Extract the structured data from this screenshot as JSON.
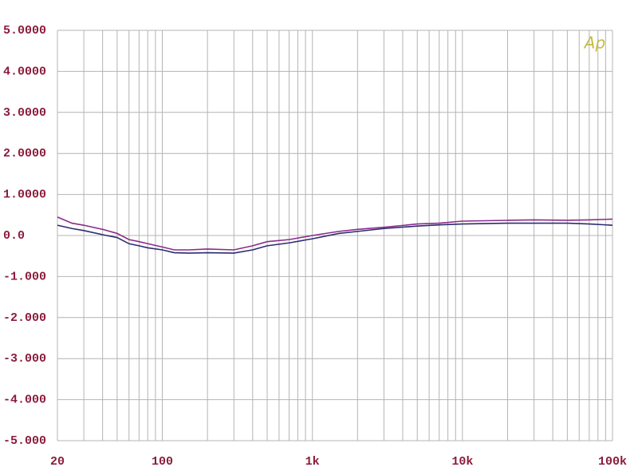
{
  "chart_data": {
    "type": "line",
    "logo": "Ap",
    "x": [
      20,
      25,
      30,
      40,
      50,
      60,
      70,
      80,
      100,
      120,
      150,
      200,
      300,
      400,
      500,
      700,
      1000,
      1500,
      2000,
      3000,
      5000,
      7000,
      10000,
      20000,
      30000,
      50000,
      70000,
      100000
    ],
    "series": [
      {
        "color": "#8a2c8c",
        "values": [
          0.45,
          0.3,
          0.25,
          0.15,
          0.05,
          -0.1,
          -0.15,
          -0.2,
          -0.28,
          -0.35,
          -0.35,
          -0.33,
          -0.35,
          -0.25,
          -0.15,
          -0.1,
          0.0,
          0.1,
          0.15,
          0.2,
          0.28,
          0.3,
          0.35,
          0.37,
          0.38,
          0.37,
          0.38,
          0.4
        ]
      },
      {
        "color": "#2c2c70",
        "values": [
          0.25,
          0.17,
          0.12,
          0.02,
          -0.05,
          -0.2,
          -0.25,
          -0.3,
          -0.35,
          -0.42,
          -0.43,
          -0.42,
          -0.43,
          -0.35,
          -0.25,
          -0.18,
          -0.08,
          0.05,
          0.1,
          0.17,
          0.23,
          0.26,
          0.28,
          0.3,
          0.3,
          0.3,
          0.28,
          0.25
        ]
      }
    ],
    "xlog": true,
    "xlim": [
      20,
      100000
    ],
    "xticks": [
      20,
      100,
      {
        "value": 1000,
        "label": "1k"
      },
      {
        "value": 10000,
        "label": "10k"
      },
      {
        "value": 100000,
        "label": "100k"
      }
    ],
    "x_minor_ticks": [
      30,
      40,
      50,
      60,
      70,
      80,
      90,
      200,
      300,
      400,
      500,
      600,
      700,
      800,
      900,
      2000,
      3000,
      4000,
      5000,
      6000,
      7000,
      8000,
      9000,
      20000,
      30000,
      40000,
      50000,
      60000,
      70000,
      80000,
      90000
    ],
    "ylim": [
      -5,
      5
    ],
    "yticks": [
      {
        "value": 5,
        "label": "5.0000"
      },
      {
        "value": 4,
        "label": "4.0000"
      },
      {
        "value": 3,
        "label": "3.0000"
      },
      {
        "value": 2,
        "label": "2.0000"
      },
      {
        "value": 1,
        "label": "1.0000"
      },
      {
        "value": 0,
        "label": "0.0"
      },
      {
        "value": -1,
        "label": "-1.000"
      },
      {
        "value": -2,
        "label": "-2.000"
      },
      {
        "value": -3,
        "label": "-3.000"
      },
      {
        "value": -4,
        "label": "-4.000"
      },
      {
        "value": -5,
        "label": "-5.000"
      }
    ],
    "grid": true
  }
}
